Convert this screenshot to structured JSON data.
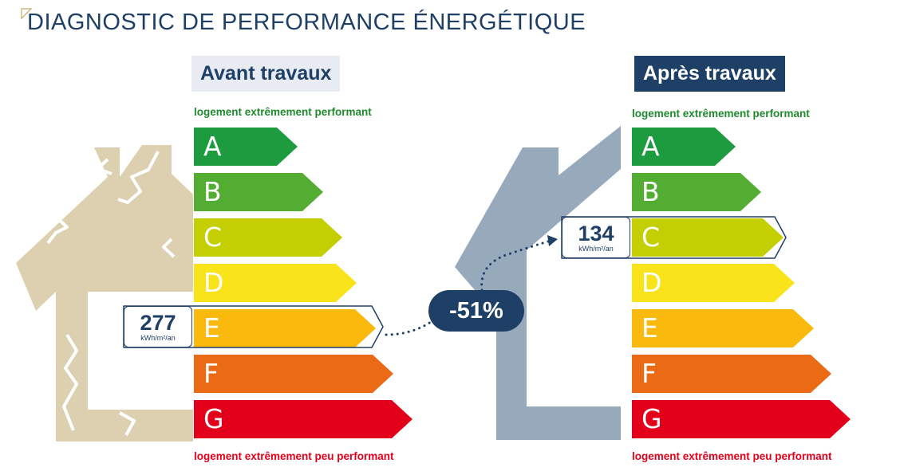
{
  "title": "DIAGNOSTIC DE PERFORMANCE ÉNERGÉTIQUE",
  "colors": {
    "navy": "#1e3f66",
    "house_before": "#ddd0b0",
    "house_after": "#97aabc",
    "good_text": "#1f8a2e",
    "bad_text": "#e3001b"
  },
  "before": {
    "label": "Avant travaux",
    "top_note": "logement extrêmement performant",
    "bottom_note": "logement extrêmement peu performant",
    "value": "277",
    "unit": "kWh/m²/an",
    "class": "E"
  },
  "after": {
    "label": "Après travaux",
    "top_note": "logement extrêmement performant",
    "bottom_note": "logement extrêmement peu performant",
    "value": "134",
    "unit": "kWh/m²/an",
    "class": "C"
  },
  "reduction": "-51%",
  "classes": [
    {
      "letter": "A",
      "color": "#1d9b3f"
    },
    {
      "letter": "B",
      "color": "#52ad32"
    },
    {
      "letter": "C",
      "color": "#c3cf00"
    },
    {
      "letter": "D",
      "color": "#f9e41b"
    },
    {
      "letter": "E",
      "color": "#f9b90d"
    },
    {
      "letter": "F",
      "color": "#ea6a16"
    },
    {
      "letter": "G",
      "color": "#e3001b"
    }
  ]
}
